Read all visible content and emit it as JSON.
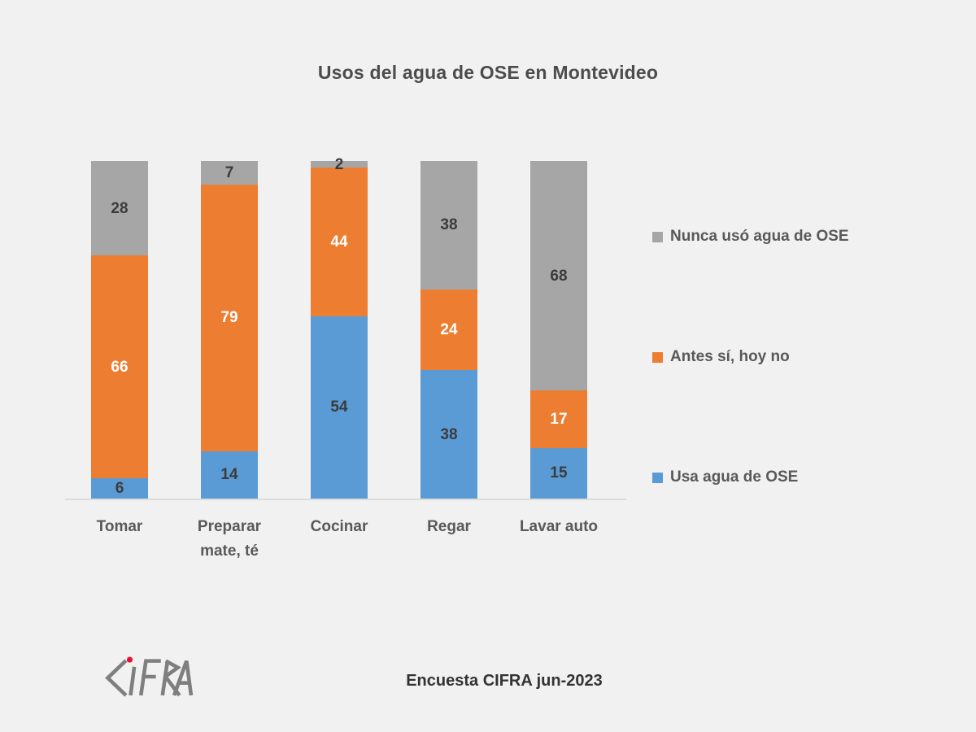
{
  "title": "Usos del agua de OSE en Montevideo",
  "chart_data": {
    "type": "bar",
    "variant": "stacked-column",
    "categories": [
      "Tomar",
      "Preparar mate, té",
      "Cocinar",
      "Regar",
      "Lavar auto"
    ],
    "series": [
      {
        "name": "Usa agua de OSE",
        "color": "#5B9BD5",
        "label_color": "#3B3B3B",
        "values": [
          6,
          14,
          54,
          38,
          15
        ]
      },
      {
        "name": "Antes sí, hoy no",
        "color": "#ED7D31",
        "label_color": "#FFFFFF",
        "values": [
          66,
          79,
          44,
          24,
          17
        ]
      },
      {
        "name": "Nunca usó agua de OSE",
        "color": "#A6A6A6",
        "label_color": "#3B3B3B",
        "values": [
          28,
          7,
          2,
          38,
          68
        ]
      }
    ],
    "ylim": [
      0,
      100
    ],
    "units": "percent",
    "grid": false,
    "y_axis_visible": false,
    "legend_position": "right",
    "legend_order_top_to_bottom": [
      "Nunca usó agua de OSE",
      "Antes sí, hoy no",
      "Usa agua de OSE"
    ]
  },
  "footer": {
    "logo": "CIFRA",
    "caption": "Encuesta CIFRA jun-2023"
  },
  "colors": {
    "background": "#F1F1F1",
    "title_text": "#4C4C4C",
    "axis_line": "#DCDCDC",
    "category_text": "#595959",
    "legend_text": "#595959",
    "logo_gray": "#7F7F7F",
    "logo_dot_red": "#E8112D"
  }
}
